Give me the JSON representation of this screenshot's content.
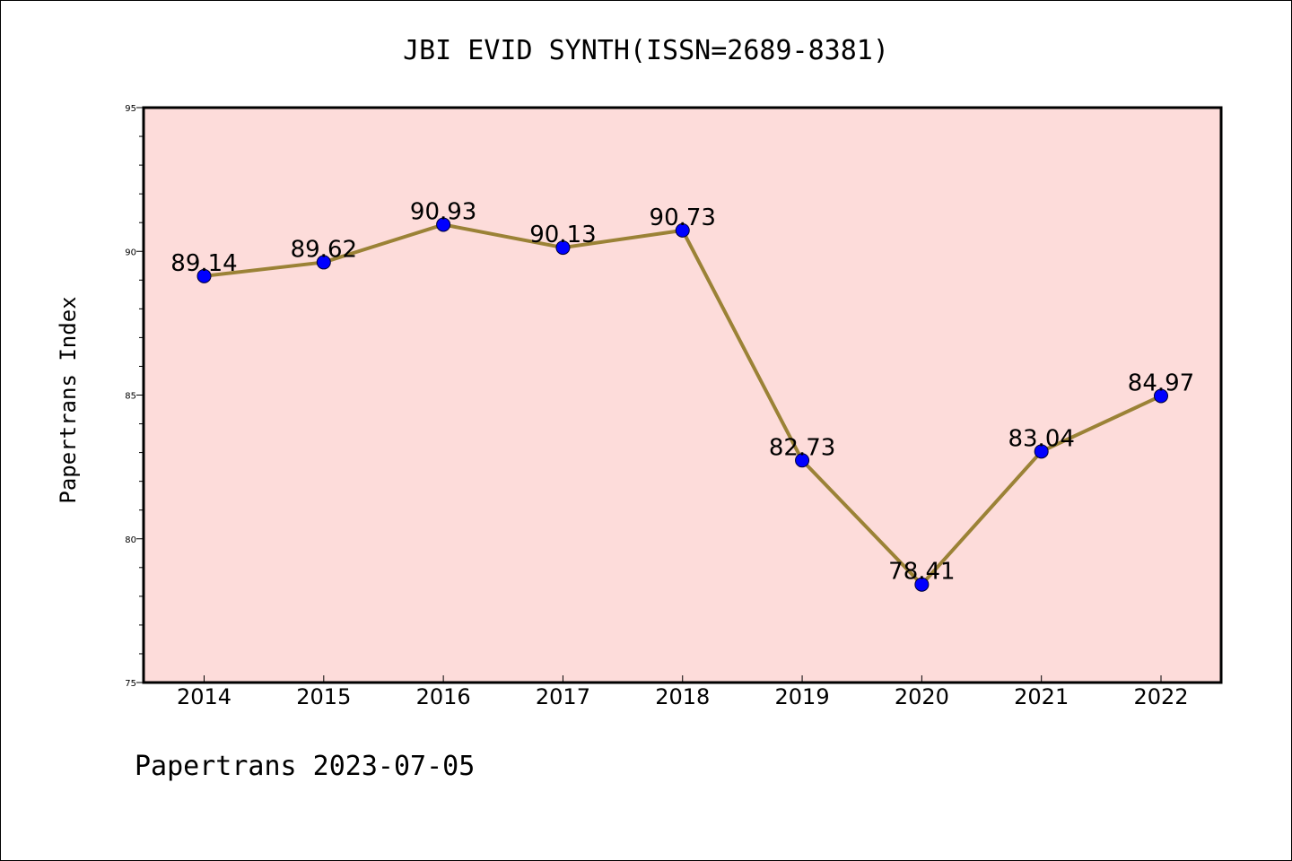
{
  "chart_data": {
    "type": "line",
    "title": "JBI EVID SYNTH(ISSN=2689-8381)",
    "ylabel": "Papertrans Index",
    "xlabel": "",
    "categories": [
      "2014",
      "2015",
      "2016",
      "2017",
      "2018",
      "2019",
      "2020",
      "2021",
      "2022"
    ],
    "series": [
      {
        "values": [
          89.14,
          89.62,
          90.93,
          90.13,
          90.73,
          82.73,
          78.41,
          83.04,
          84.97
        ],
        "labels": [
          "89.14",
          "89.62",
          "90.93",
          "90.13",
          "90.73",
          "82.73",
          "78.41",
          "83.04",
          "84.97"
        ]
      }
    ],
    "ylim": [
      75,
      95
    ],
    "yticks": [
      75,
      80,
      85,
      90,
      95
    ],
    "grid": false,
    "colors": {
      "plot_background": "#FDDCDA",
      "line": "#9B8236",
      "marker": "#0000FF"
    }
  },
  "footer": {
    "text": "Papertrans 2023-07-05"
  }
}
